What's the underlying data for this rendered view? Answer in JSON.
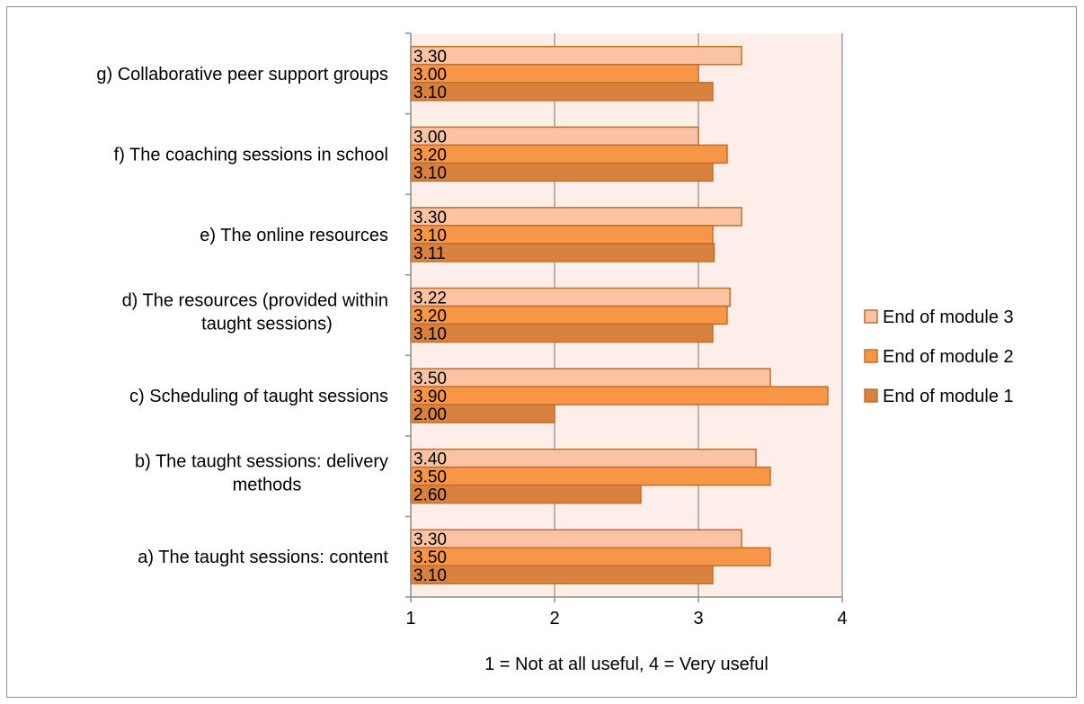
{
  "chart_data": {
    "type": "bar",
    "orientation": "horizontal",
    "categories": [
      [
        "a)  The taught sessions: content"
      ],
      [
        "b)  The taught sessions: delivery",
        "methods"
      ],
      [
        "c)  Scheduling of taught sessions"
      ],
      [
        "d)  The resources (provided within",
        "taught sessions)"
      ],
      [
        "e)  The online resources"
      ],
      [
        "f)  The coaching sessions in school"
      ],
      [
        "g)  Collaborative peer support groups"
      ]
    ],
    "series": [
      {
        "name": "End of module 1",
        "color": "#D9823F",
        "values": [
          3.1,
          2.6,
          2.0,
          3.1,
          3.11,
          3.1,
          3.1
        ],
        "labels": [
          "3.10",
          "2.60",
          "2.00",
          "3.10",
          "3.11",
          "3.10",
          "3.10"
        ]
      },
      {
        "name": "End of module 2",
        "color": "#F79646",
        "values": [
          3.5,
          3.5,
          3.9,
          3.2,
          3.1,
          3.2,
          3.0
        ],
        "labels": [
          "3.50",
          "3.50",
          "3.90",
          "3.20",
          "3.10",
          "3.20",
          "3.00"
        ]
      },
      {
        "name": "End of module 3",
        "color": "#FAC3A4",
        "values": [
          3.3,
          3.4,
          3.5,
          3.22,
          3.3,
          3.0,
          3.3
        ],
        "labels": [
          "3.30",
          "3.40",
          "3.50",
          "3.22",
          "3.30",
          "3.00",
          "3.30"
        ]
      }
    ],
    "xlim": [
      1,
      4
    ],
    "xticks": [
      "1",
      "2",
      "3",
      "4"
    ],
    "xlabel": "1 = Not at all useful, 4 = Very useful",
    "title": "",
    "grid": true,
    "legend_position": "right",
    "legend_order": [
      "End of module 3",
      "End of module 2",
      "End of module 1"
    ],
    "plot_background": "#FDEEE9",
    "bar_border_color": "#C0702E"
  }
}
